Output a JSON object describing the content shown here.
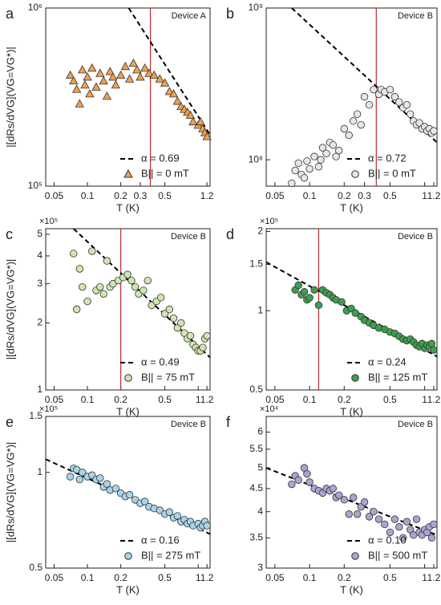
{
  "chart_data": [
    {
      "type": "scatter",
      "panel_label": "a",
      "annotation": "Device A",
      "xlabel": "T (K)",
      "ylabel": "|[dRs/dVG](VG=VG*)|",
      "xscale": "log",
      "yscale": "log",
      "xlim": [
        0.042,
        1.28
      ],
      "ylim": [
        100000,
        1000000
      ],
      "xticks": [
        0.05,
        0.1,
        0.2,
        0.3,
        0.5,
        1.2
      ],
      "yticks": [
        {
          "value": 100000,
          "label": "10⁵"
        },
        {
          "value": 1000000,
          "label": "10⁶"
        }
      ],
      "vline": 0.37,
      "vline_color": "#c0282d",
      "legend": "lower right",
      "series": [
        {
          "name": "α = 0.69",
          "color": "#000000",
          "line": "dashed",
          "x": [
            0.236,
            1.28
          ],
          "values": [
            1000000,
            194000
          ]
        },
        {
          "name": "B|| = 0 mT",
          "color": "#f0a050",
          "marker": "triangle",
          "x": [
            0.07,
            0.075,
            0.08,
            0.085,
            0.09,
            0.095,
            0.1,
            0.105,
            0.11,
            0.12,
            0.13,
            0.14,
            0.15,
            0.16,
            0.17,
            0.18,
            0.2,
            0.22,
            0.24,
            0.26,
            0.28,
            0.3,
            0.33,
            0.36,
            0.4,
            0.45,
            0.5,
            0.55,
            0.6,
            0.65,
            0.7,
            0.75,
            0.8,
            0.85,
            0.9,
            1.0,
            1.05,
            1.1,
            1.15,
            1.2
          ],
          "values": [
            420000,
            390000,
            350000,
            290000,
            450000,
            370000,
            410000,
            330000,
            460000,
            360000,
            430000,
            390000,
            320000,
            440000,
            410000,
            370000,
            420000,
            470000,
            400000,
            490000,
            450000,
            410000,
            460000,
            430000,
            420000,
            400000,
            380000,
            340000,
            330000,
            300000,
            280000,
            270000,
            260000,
            250000,
            230000,
            220000,
            230000,
            210000,
            200000,
            190000
          ]
        }
      ]
    },
    {
      "type": "scatter",
      "panel_label": "b",
      "annotation": "Device B",
      "xlabel": "T (K)",
      "xscale": "log",
      "yscale": "log",
      "xlim": [
        0.042,
        1.28
      ],
      "ylim": [
        67000000,
        1000000000
      ],
      "xticks": [
        0.05,
        0.1,
        0.2,
        0.3,
        0.5,
        1,
        1.2
      ],
      "yticks": [
        {
          "value": 100000000,
          "label": "10⁸"
        },
        {
          "value": 1000000000,
          "label": "10⁹"
        }
      ],
      "vline": 0.38,
      "vline_color": "#c0282d",
      "legend": "lower right",
      "series": [
        {
          "name": "α = 0.72",
          "color": "#000000",
          "line": "dashed",
          "x": [
            0.07,
            1.28
          ],
          "values": [
            1000000000,
            130000000
          ]
        },
        {
          "name": "B|| = 0 mT",
          "color": "#e6e6e6",
          "marker": "circle",
          "x": [
            0.07,
            0.075,
            0.08,
            0.085,
            0.09,
            0.095,
            0.1,
            0.11,
            0.12,
            0.125,
            0.13,
            0.14,
            0.15,
            0.16,
            0.17,
            0.18,
            0.2,
            0.22,
            0.24,
            0.26,
            0.28,
            0.3,
            0.33,
            0.36,
            0.4,
            0.42,
            0.45,
            0.5,
            0.55,
            0.6,
            0.65,
            0.7,
            0.75,
            0.8,
            0.85,
            0.9,
            0.95,
            1.0,
            1.05,
            1.1,
            1.15,
            1.2
          ],
          "values": [
            70000000,
            85000000,
            95000000,
            80000000,
            76000000,
            98000000,
            87000000,
            105000000,
            90000000,
            100000000,
            120000000,
            110000000,
            130000000,
            125000000,
            105000000,
            115000000,
            160000000,
            145000000,
            180000000,
            200000000,
            170000000,
            260000000,
            230000000,
            290000000,
            270000000,
            290000000,
            280000000,
            290000000,
            260000000,
            240000000,
            220000000,
            230000000,
            200000000,
            180000000,
            170000000,
            175000000,
            160000000,
            165000000,
            155000000,
            160000000,
            150000000,
            155000000
          ]
        }
      ]
    },
    {
      "type": "scatter",
      "panel_label": "c",
      "annotation": "Device B",
      "xlabel": "T (K)",
      "ylabel": "|[dRs/dVG](VG=VG*)|",
      "y_multiplier": "×10⁵",
      "xscale": "log",
      "yscale": "log",
      "xlim": [
        0.042,
        1.28
      ],
      "ylim": [
        1,
        5.3
      ],
      "xticks": [
        0.05,
        0.1,
        0.2,
        0.5,
        1,
        1.2
      ],
      "yticks": [
        1,
        2,
        3,
        4,
        5
      ],
      "vline": 0.2,
      "vline_color": "#c0282d",
      "legend": "lower right",
      "series": [
        {
          "name": "α = 0.49",
          "color": "#000000",
          "line": "dashed",
          "x": [
            0.075,
            1.28
          ],
          "values": [
            5.3,
            1.4
          ]
        },
        {
          "name": "B|| = 75 mT",
          "color": "#cfe6b0",
          "marker": "circle",
          "x": [
            0.075,
            0.08,
            0.085,
            0.09,
            0.1,
            0.11,
            0.12,
            0.13,
            0.14,
            0.15,
            0.16,
            0.17,
            0.19,
            0.21,
            0.23,
            0.25,
            0.27,
            0.29,
            0.32,
            0.35,
            0.38,
            0.42,
            0.46,
            0.5,
            0.55,
            0.6,
            0.65,
            0.7,
            0.75,
            0.8,
            0.85,
            0.9,
            0.95,
            1.0,
            1.05,
            1.1,
            1.15,
            1.2
          ],
          "values": [
            4.1,
            2.3,
            3.5,
            2.9,
            2.5,
            4.2,
            2.8,
            2.9,
            2.7,
            3.8,
            2.9,
            3.0,
            3.1,
            3.2,
            3.3,
            3.1,
            2.9,
            2.7,
            2.8,
            3.1,
            2.4,
            2.5,
            2.6,
            2.2,
            2.3,
            2.1,
            1.9,
            2.0,
            1.8,
            1.7,
            1.75,
            1.6,
            1.55,
            1.5,
            1.5,
            1.55,
            1.7,
            1.75
          ]
        }
      ]
    },
    {
      "type": "scatter",
      "panel_label": "d",
      "annotation": "Device B",
      "xlabel": "T (K)",
      "y_multiplier": "×10⁵",
      "xscale": "log",
      "yscale": "log",
      "xlim": [
        0.042,
        1.28
      ],
      "ylim": [
        0.5,
        2.05
      ],
      "xticks": [
        0.05,
        0.1,
        0.2,
        0.5,
        1,
        1.2
      ],
      "yticks": [
        0.5,
        1,
        1.5,
        2
      ],
      "vline": 0.12,
      "vline_color": "#c0282d",
      "legend": "lower right",
      "series": [
        {
          "name": "α = 0.24",
          "color": "#000000",
          "line": "dashed",
          "x": [
            0.042,
            1.28
          ],
          "values": [
            1.53,
            0.67
          ]
        },
        {
          "name": "B|| = 125 mT",
          "color": "#3e9e4f",
          "marker": "circle",
          "x": [
            0.075,
            0.08,
            0.085,
            0.09,
            0.095,
            0.1,
            0.11,
            0.12,
            0.13,
            0.14,
            0.15,
            0.16,
            0.17,
            0.19,
            0.21,
            0.23,
            0.25,
            0.28,
            0.3,
            0.33,
            0.36,
            0.4,
            0.45,
            0.5,
            0.55,
            0.6,
            0.65,
            0.7,
            0.75,
            0.8,
            0.85,
            0.9,
            0.95,
            1.0,
            1.05,
            1.1,
            1.15,
            1.2
          ],
          "values": [
            1.2,
            1.25,
            1.15,
            1.18,
            1.1,
            1.12,
            1.2,
            1.05,
            1.2,
            1.17,
            1.15,
            1.12,
            1.1,
            1.08,
            1.0,
            1.02,
            0.98,
            0.95,
            0.92,
            0.9,
            0.88,
            0.86,
            0.85,
            0.83,
            0.82,
            0.8,
            0.78,
            0.77,
            0.78,
            0.76,
            0.74,
            0.73,
            0.75,
            0.72,
            0.74,
            0.73,
            0.75,
            0.71
          ]
        }
      ]
    },
    {
      "type": "scatter",
      "panel_label": "e",
      "annotation": "Device B",
      "xlabel": "T (K)",
      "ylabel": "|[dRs/dVG](VG=VG*)|",
      "y_multiplier": "×10⁵",
      "xscale": "log",
      "yscale": "log",
      "xlim": [
        0.042,
        1.28
      ],
      "ylim": [
        0.5,
        1.5
      ],
      "xticks": [
        0.05,
        0.1,
        0.2,
        0.5,
        1,
        1.2
      ],
      "yticks": [
        0.5,
        1,
        1.5
      ],
      "legend": "lower right",
      "series": [
        {
          "name": "α = 0.16",
          "color": "#000000",
          "line": "dashed",
          "x": [
            0.042,
            1.28
          ],
          "values": [
            1.1,
            0.64
          ]
        },
        {
          "name": "B|| = 275 mT",
          "color": "#a9d3ea",
          "marker": "circle",
          "x": [
            0.07,
            0.075,
            0.08,
            0.085,
            0.09,
            0.1,
            0.11,
            0.12,
            0.13,
            0.14,
            0.15,
            0.16,
            0.18,
            0.2,
            0.22,
            0.24,
            0.27,
            0.3,
            0.33,
            0.36,
            0.4,
            0.45,
            0.5,
            0.55,
            0.6,
            0.65,
            0.7,
            0.75,
            0.8,
            0.85,
            0.9,
            1.0,
            1.05,
            1.1,
            1.15,
            1.2
          ],
          "values": [
            0.97,
            1.03,
            1.02,
            0.95,
            1.0,
            0.97,
            0.98,
            0.95,
            0.96,
            0.9,
            0.92,
            0.88,
            0.89,
            0.86,
            0.84,
            0.85,
            0.82,
            0.8,
            0.81,
            0.78,
            0.77,
            0.76,
            0.74,
            0.75,
            0.72,
            0.73,
            0.7,
            0.71,
            0.69,
            0.7,
            0.68,
            0.69,
            0.67,
            0.68,
            0.7,
            0.68
          ]
        }
      ]
    },
    {
      "type": "scatter",
      "panel_label": "f",
      "annotation": "Device B",
      "xlabel": "T (K)",
      "y_multiplier": "×10⁴",
      "xscale": "log",
      "yscale": "log",
      "xlim": [
        0.042,
        1.28
      ],
      "ylim": [
        3,
        6.5
      ],
      "xticks": [
        0.05,
        0.1,
        0.2,
        0.5,
        1,
        1.2
      ],
      "yticks": [
        3,
        3.5,
        4,
        4.5,
        5,
        5.5,
        6
      ],
      "legend": "lower right",
      "series": [
        {
          "name": "α = 0.10",
          "color": "#000000",
          "line": "dashed",
          "x": [
            0.042,
            1.28
          ],
          "values": [
            5.0,
            3.55
          ]
        },
        {
          "name": "B|| = 500 mT",
          "color": "#aba4d3",
          "marker": "circle",
          "x": [
            0.07,
            0.075,
            0.08,
            0.09,
            0.095,
            0.1,
            0.11,
            0.12,
            0.13,
            0.14,
            0.15,
            0.16,
            0.17,
            0.18,
            0.2,
            0.22,
            0.24,
            0.26,
            0.28,
            0.3,
            0.33,
            0.36,
            0.4,
            0.45,
            0.5,
            0.55,
            0.6,
            0.65,
            0.7,
            0.75,
            0.8,
            0.85,
            0.9,
            0.95,
            1.0,
            1.05,
            1.1,
            1.15,
            1.2
          ],
          "values": [
            4.6,
            4.8,
            4.7,
            5.0,
            4.85,
            4.65,
            4.5,
            4.45,
            4.4,
            4.5,
            4.45,
            4.5,
            4.3,
            4.35,
            4.25,
            3.95,
            4.3,
            3.95,
            4.1,
            4.2,
            3.9,
            4.0,
            3.85,
            3.75,
            3.6,
            3.85,
            3.7,
            3.5,
            3.8,
            3.65,
            3.55,
            3.85,
            3.6,
            3.55,
            3.65,
            3.6,
            3.7,
            3.5,
            3.75
          ]
        }
      ]
    }
  ]
}
